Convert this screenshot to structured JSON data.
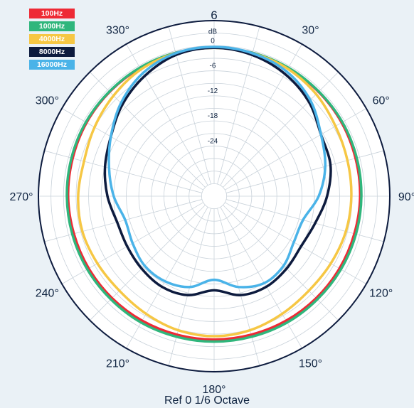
{
  "chart_data": {
    "type": "polar-line",
    "title": "",
    "footer": "Ref 0 1/6 Octave",
    "radial_unit": "dB",
    "radial_ticks": [
      0,
      -6,
      -12,
      -18,
      -24
    ],
    "radial_range": [
      -36,
      6
    ],
    "outer_ring_label": "6",
    "angle_labels": [
      "30°",
      "60°",
      "90°",
      "120°",
      "150°",
      "180°",
      "210°",
      "240°",
      "270°",
      "300°",
      "330°"
    ],
    "angles": [
      0,
      15,
      30,
      45,
      60,
      75,
      90,
      105,
      120,
      135,
      150,
      165,
      180,
      195,
      210,
      225,
      240,
      255,
      270,
      285,
      300,
      315,
      330,
      345
    ],
    "legend_position": "top-left",
    "grid": true,
    "series": [
      {
        "name": "100Hz",
        "color": "#ee2a35",
        "values": [
          -0.5,
          -0.5,
          -0.6,
          -0.7,
          -0.8,
          -1.0,
          -1.1,
          -1.3,
          -1.4,
          -1.5,
          -1.6,
          -1.7,
          -1.7,
          -1.7,
          -1.6,
          -1.5,
          -1.4,
          -1.3,
          -1.1,
          -1.0,
          -0.8,
          -0.7,
          -0.6,
          -0.5
        ]
      },
      {
        "name": "1000Hz",
        "color": "#2fb67c",
        "values": [
          -0.5,
          -0.5,
          -0.5,
          -0.6,
          -0.6,
          -0.7,
          -0.8,
          -0.9,
          -1.0,
          -1.1,
          -1.1,
          -1.2,
          -1.2,
          -1.2,
          -1.1,
          -1.1,
          -1.0,
          -0.9,
          -0.8,
          -0.7,
          -0.6,
          -0.6,
          -0.5,
          -0.5
        ]
      },
      {
        "name": "4000Hz",
        "color": "#f6c744",
        "values": [
          -0.5,
          -0.6,
          -0.8,
          -1.5,
          -2.5,
          -3.0,
          -3.2,
          -3.4,
          -3.8,
          -4.0,
          -3.5,
          -2.8,
          -2.5,
          -2.8,
          -3.5,
          -4.0,
          -3.8,
          -3.4,
          -3.5,
          -3.8,
          -3.0,
          -2.0,
          -1.0,
          -0.6
        ]
      },
      {
        "name": "8000Hz",
        "color": "#0d1b3e",
        "values": [
          -0.5,
          -1.0,
          -2.2,
          -4.0,
          -6.5,
          -7.2,
          -9.0,
          -11.0,
          -12.0,
          -11.5,
          -11.0,
          -11.5,
          -13.5,
          -11.5,
          -11.0,
          -11.5,
          -12.0,
          -12.0,
          -10.5,
          -9.0,
          -7.5,
          -5.0,
          -2.8,
          -1.0
        ]
      },
      {
        "name": "16000Hz",
        "color": "#4ab3e8",
        "values": [
          -0.3,
          -0.6,
          -1.5,
          -3.5,
          -6.5,
          -8.5,
          -11.0,
          -14.0,
          -14.0,
          -12.5,
          -12.0,
          -13.5,
          -16.0,
          -13.5,
          -12.5,
          -12.5,
          -13.5,
          -14.0,
          -12.0,
          -10.0,
          -7.5,
          -4.5,
          -2.0,
          -0.6
        ]
      }
    ]
  }
}
